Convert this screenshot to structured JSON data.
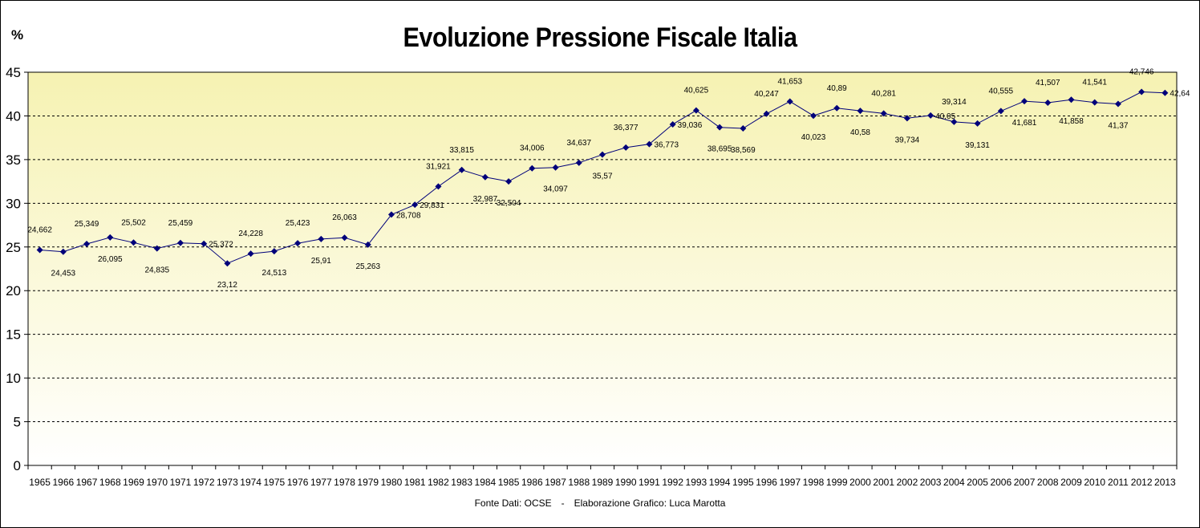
{
  "chart_data": {
    "type": "line",
    "title": "Evoluzione Pressione Fiscale Italia",
    "ylabel": "%",
    "xlabel": "",
    "ylim": [
      0,
      45
    ],
    "yticks": [
      0,
      5,
      10,
      15,
      20,
      25,
      30,
      35,
      40,
      45
    ],
    "grid": true,
    "legend": "none",
    "source": "Fonte Dati: OCSE",
    "separator": "-",
    "credit": "Elaborazione Grafico: Luca Marotta",
    "categories": [
      "1965",
      "1966",
      "1967",
      "1968",
      "1969",
      "1970",
      "1971",
      "1972",
      "1973",
      "1974",
      "1975",
      "1976",
      "1977",
      "1978",
      "1979",
      "1980",
      "1981",
      "1982",
      "1983",
      "1984",
      "1985",
      "1986",
      "1987",
      "1988",
      "1989",
      "1990",
      "1991",
      "1992",
      "1993",
      "1994",
      "1995",
      "1996",
      "1997",
      "1998",
      "1999",
      "2000",
      "2001",
      "2002",
      "2003",
      "2004",
      "2005",
      "2006",
      "2007",
      "2008",
      "2009",
      "2010",
      "2011",
      "2012",
      "2013"
    ],
    "values": [
      24.662,
      24.453,
      25.349,
      26.095,
      25.502,
      24.835,
      25.459,
      25.372,
      23.12,
      24.228,
      24.513,
      25.423,
      25.91,
      26.063,
      25.263,
      28.708,
      29.831,
      31.921,
      33.815,
      32.987,
      32.504,
      34.006,
      34.097,
      34.637,
      35.57,
      36.377,
      36.773,
      39.036,
      40.625,
      38.695,
      38.569,
      40.247,
      41.653,
      40.023,
      40.89,
      40.58,
      40.281,
      39.734,
      40.05,
      39.314,
      39.131,
      40.555,
      41.681,
      41.507,
      41.858,
      41.541,
      41.37,
      42.746,
      42.64
    ],
    "data_labels": [
      "24,662",
      "24,453",
      "25,349",
      "26,095",
      "25,502",
      "24,835",
      "25,459",
      "25,372",
      "23,12",
      "24,228",
      "24,513",
      "25,423",
      "25,91",
      "26,063",
      "25,263",
      "28,708",
      "29,831",
      "31,921",
      "33,815",
      "32,987",
      "32,504",
      "34,006",
      "34,097",
      "34,637",
      "35,57",
      "36,377",
      "36,773",
      "39,036",
      "40,625",
      "38,695",
      "38,569",
      "40,247",
      "41,653",
      "40,023",
      "40,89",
      "40,58",
      "40,281",
      "39,734",
      "40,05",
      "39,314",
      "39,131",
      "40,555",
      "41,681",
      "41,507",
      "41,858",
      "41,541",
      "41,37",
      "42,746",
      "42,64"
    ],
    "label_position": [
      "above",
      "below",
      "above",
      "below",
      "above",
      "below",
      "above",
      "right",
      "below",
      "above",
      "below",
      "above",
      "below",
      "above",
      "below",
      "right",
      "right",
      "above",
      "above",
      "below",
      "below",
      "above",
      "below",
      "above",
      "below",
      "above",
      "right",
      "right",
      "above",
      "below",
      "below",
      "above",
      "above",
      "below",
      "above",
      "below",
      "above",
      "below",
      "right",
      "above",
      "below",
      "above",
      "below",
      "above",
      "below",
      "above",
      "below",
      "above",
      "right"
    ],
    "colors": {
      "line": "#00007a",
      "marker": "#00007a",
      "plot_bg_top": "#f6f2b2",
      "plot_bg_bottom": "#ffffff",
      "grid": "#000000"
    }
  }
}
